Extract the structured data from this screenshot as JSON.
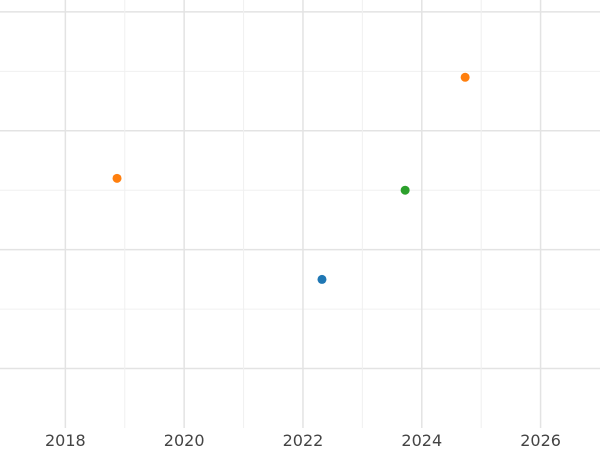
{
  "chart_data": {
    "type": "scatter",
    "title": "",
    "xlabel": "",
    "ylabel": "",
    "xlim": [
      2016.9,
      2027.0
    ],
    "ylim": [
      0,
      7.2
    ],
    "x_ticks": [
      2018,
      2020,
      2022,
      2024,
      2026
    ],
    "x_tick_labels": [
      "2018",
      "2020",
      "2022",
      "2024",
      "2026"
    ],
    "y_major_gridlines": [
      1,
      3,
      5,
      7
    ],
    "y_minor_gridlines": [
      2,
      4,
      6
    ],
    "x_minor_gridlines": [
      2019,
      2021,
      2023,
      2025
    ],
    "grid": true,
    "points": [
      {
        "x": 2018.87,
        "y": 4.2,
        "color": "#ff7f0e"
      },
      {
        "x": 2022.32,
        "y": 2.5,
        "color": "#1f77b4"
      },
      {
        "x": 2023.72,
        "y": 4.0,
        "color": "#2ca02c"
      },
      {
        "x": 2024.73,
        "y": 5.9,
        "color": "#ff7f0e"
      }
    ]
  }
}
